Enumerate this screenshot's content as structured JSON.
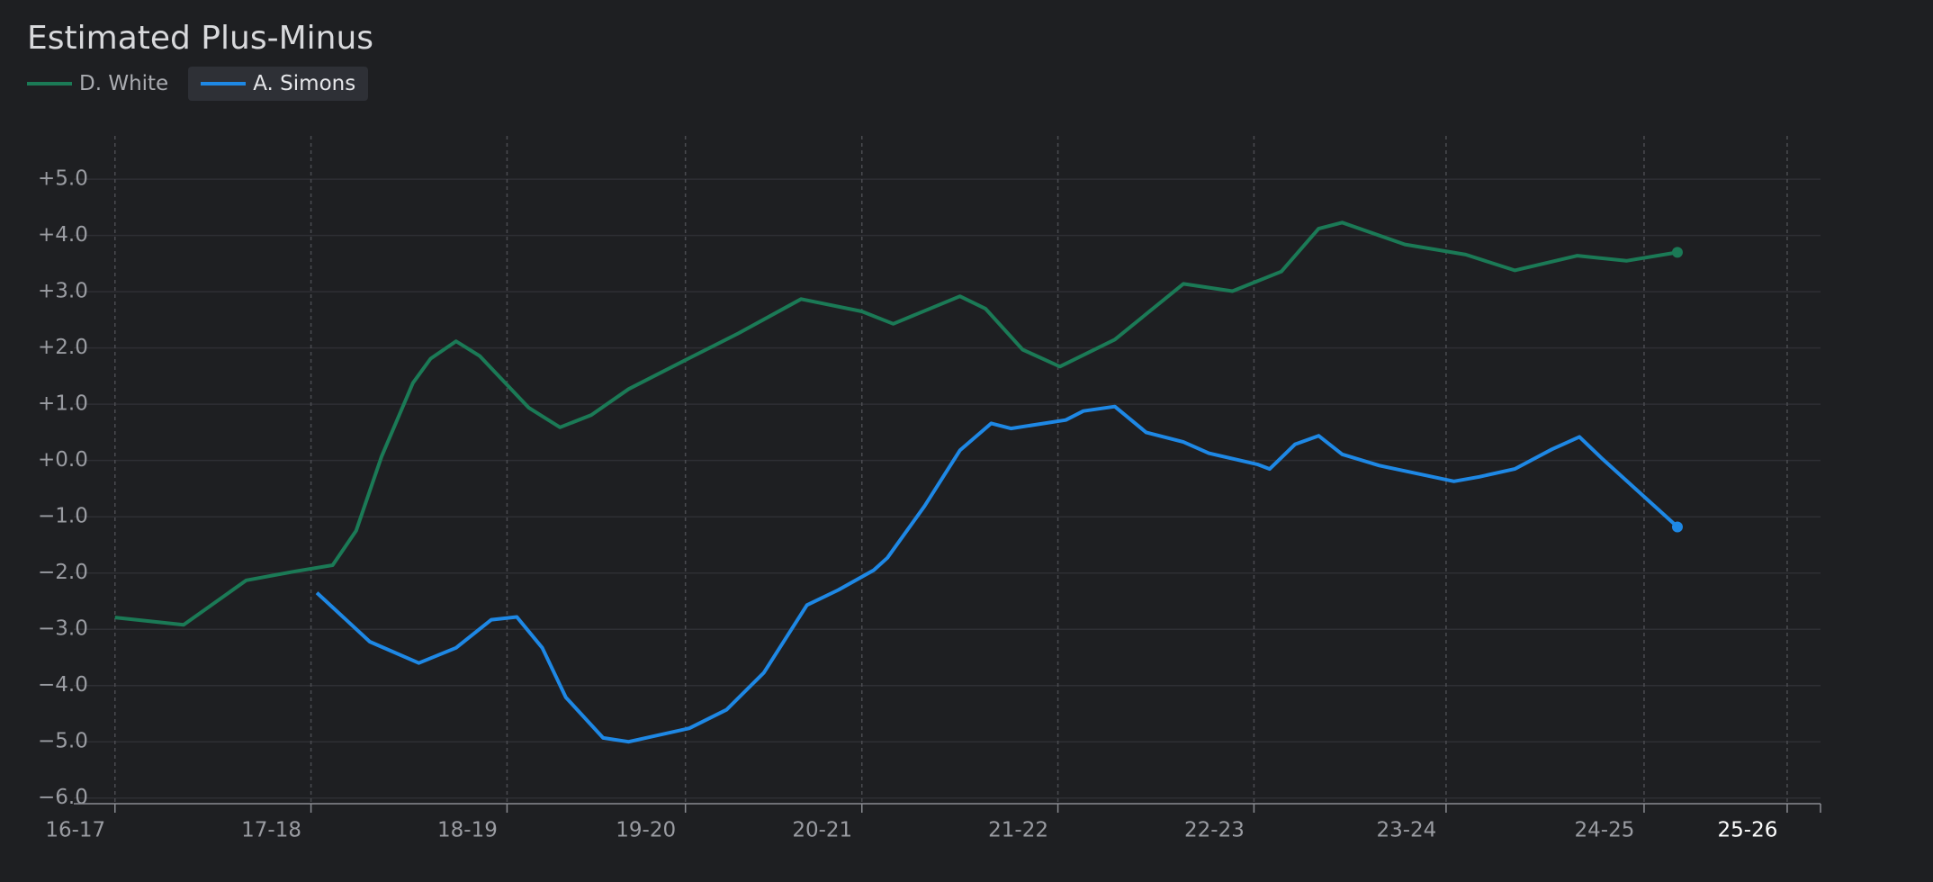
{
  "chart_data": {
    "type": "line",
    "title": "Estimated Plus-Minus",
    "xlim": [
      -0.21,
      8.7
    ],
    "xticks": [
      {
        "value": 0,
        "label": "16-17"
      },
      {
        "value": 1.0,
        "label": "17-18"
      },
      {
        "value": 2.0,
        "label": "18-19"
      },
      {
        "value": 2.91,
        "label": "19-20"
      },
      {
        "value": 3.81,
        "label": "20-21"
      },
      {
        "value": 4.81,
        "label": "21-22"
      },
      {
        "value": 5.81,
        "label": "22-23"
      },
      {
        "value": 6.79,
        "label": "23-24"
      },
      {
        "value": 7.8,
        "label": "24-25"
      },
      {
        "value": 8.53,
        "label": "25-26"
      }
    ],
    "ylim": [
      -6.1,
      5.77
    ],
    "yticks": [
      {
        "value": 5,
        "label": "+5.0"
      },
      {
        "value": 4,
        "label": "+4.0"
      },
      {
        "value": 3,
        "label": "+3.0"
      },
      {
        "value": 2,
        "label": "+2.0"
      },
      {
        "value": 1,
        "label": "+1.0"
      },
      {
        "value": 0,
        "label": "+0.0"
      },
      {
        "value": -1,
        "label": "−1.0"
      },
      {
        "value": -2,
        "label": "−2.0"
      },
      {
        "value": -3,
        "label": "−3.0"
      },
      {
        "value": -4,
        "label": "−4.0"
      },
      {
        "value": -5,
        "label": "−5.0"
      },
      {
        "value": -6,
        "label": "−6.0"
      }
    ],
    "grid": true,
    "series": [
      {
        "name": "D. White",
        "color": "#1b7a56",
        "x": [
          0,
          0.35,
          0.67,
          0.92,
          1.11,
          1.23,
          1.36,
          1.52,
          1.61,
          1.74,
          1.86,
          2.11,
          2.27,
          2.43,
          2.62,
          2.93,
          3.18,
          3.5,
          3.81,
          3.97,
          4.31,
          4.44,
          4.63,
          4.82,
          5.1,
          5.45,
          5.7,
          5.95,
          6.14,
          6.26,
          6.58,
          6.89,
          7.14,
          7.46,
          7.71,
          7.97
        ],
        "values": [
          -2.79,
          -2.92,
          -2.13,
          -1.97,
          -1.86,
          -1.25,
          0.07,
          1.38,
          1.81,
          2.12,
          1.86,
          0.94,
          0.59,
          0.81,
          1.27,
          1.82,
          2.26,
          2.87,
          2.65,
          2.43,
          2.92,
          2.7,
          1.97,
          1.67,
          2.15,
          3.14,
          3.01,
          3.36,
          4.12,
          4.23,
          3.84,
          3.66,
          3.38,
          3.64,
          3.55,
          3.7
        ]
      },
      {
        "name": "A. Simons",
        "color": "#1e88e5",
        "x": [
          1.03,
          1.3,
          1.55,
          1.74,
          1.92,
          2.05,
          2.18,
          2.3,
          2.49,
          2.62,
          2.93,
          3.12,
          3.31,
          3.53,
          3.69,
          3.87,
          3.94,
          4.13,
          4.31,
          4.47,
          4.57,
          4.85,
          4.94,
          5.1,
          5.26,
          5.45,
          5.58,
          5.83,
          5.89,
          6.02,
          6.14,
          6.26,
          6.45,
          6.83,
          6.96,
          7.14,
          7.33,
          7.47,
          7.59,
          7.97
        ],
        "values": [
          -2.35,
          -3.22,
          -3.6,
          -3.33,
          -2.83,
          -2.78,
          -3.33,
          -4.21,
          -4.93,
          -5.0,
          -4.76,
          -4.43,
          -3.77,
          -2.57,
          -2.3,
          -1.95,
          -1.73,
          -0.81,
          0.18,
          0.66,
          0.57,
          0.72,
          0.88,
          0.96,
          0.5,
          0.33,
          0.13,
          -0.07,
          -0.15,
          0.29,
          0.44,
          0.11,
          -0.09,
          -0.37,
          -0.29,
          -0.15,
          0.2,
          0.42,
          0.02,
          -1.18
        ]
      }
    ]
  }
}
